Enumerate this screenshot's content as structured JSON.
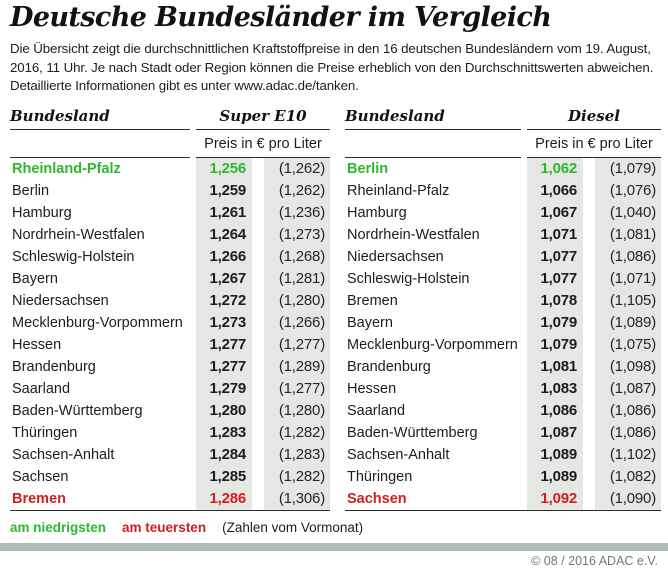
{
  "header": {
    "title": "Deutsche Bundesländer im Vergleich",
    "intro": "Die Übersicht zeigt die durchschnittlichen Kraftstoffpreise in den 16 deutschen Bundesländern vom 19. August, 2016, 11 Uhr. Je nach Stadt oder Region können die Preise erheblich von den Durchschnittswerten abweichen. Detaillierte Informationen gibt es unter www.adac.de/tanken."
  },
  "tables": [
    {
      "state_header": "Bundesland",
      "fuel_header": "Super E10",
      "unit_header": "Preis in € pro Liter",
      "rows": [
        {
          "name": "Rheinland-Pfalz",
          "price": "1,256",
          "prev": "(1,262)",
          "highlight": "lowest"
        },
        {
          "name": "Berlin",
          "price": "1,259",
          "prev": "(1,262)",
          "highlight": null
        },
        {
          "name": "Hamburg",
          "price": "1,261",
          "prev": "(1,236)",
          "highlight": null
        },
        {
          "name": "Nordrhein-Westfalen",
          "price": "1,264",
          "prev": "(1,273)",
          "highlight": null
        },
        {
          "name": "Schleswig-Holstein",
          "price": "1,266",
          "prev": "(1,268)",
          "highlight": null
        },
        {
          "name": "Bayern",
          "price": "1,267",
          "prev": "(1,281)",
          "highlight": null
        },
        {
          "name": "Niedersachsen",
          "price": "1,272",
          "prev": "(1,280)",
          "highlight": null
        },
        {
          "name": "Mecklenburg-Vorpommern",
          "price": "1,273",
          "prev": "(1,266)",
          "highlight": null
        },
        {
          "name": "Hessen",
          "price": "1,277",
          "prev": "(1,277)",
          "highlight": null
        },
        {
          "name": "Brandenburg",
          "price": "1,277",
          "prev": "(1,289)",
          "highlight": null
        },
        {
          "name": "Saarland",
          "price": "1,279",
          "prev": "(1,277)",
          "highlight": null
        },
        {
          "name": "Baden-Württemberg",
          "price": "1,280",
          "prev": "(1,280)",
          "highlight": null
        },
        {
          "name": "Thüringen",
          "price": "1,283",
          "prev": "(1,282)",
          "highlight": null
        },
        {
          "name": "Sachsen-Anhalt",
          "price": "1,284",
          "prev": "(1,283)",
          "highlight": null
        },
        {
          "name": "Sachsen",
          "price": "1,285",
          "prev": "(1,282)",
          "highlight": null
        },
        {
          "name": "Bremen",
          "price": "1,286",
          "prev": "(1,306)",
          "highlight": "highest"
        }
      ]
    },
    {
      "state_header": "Bundesland",
      "fuel_header": "Diesel",
      "unit_header": "Preis in € pro Liter",
      "rows": [
        {
          "name": "Berlin",
          "price": "1,062",
          "prev": "(1,079)",
          "highlight": "lowest"
        },
        {
          "name": "Rheinland-Pfalz",
          "price": "1,066",
          "prev": "(1,076)",
          "highlight": null
        },
        {
          "name": "Hamburg",
          "price": "1,067",
          "prev": "(1,040)",
          "highlight": null
        },
        {
          "name": "Nordrhein-Westfalen",
          "price": "1,071",
          "prev": "(1,081)",
          "highlight": null
        },
        {
          "name": "Niedersachsen",
          "price": "1,077",
          "prev": "(1,086)",
          "highlight": null
        },
        {
          "name": "Schleswig-Holstein",
          "price": "1,077",
          "prev": "(1,071)",
          "highlight": null
        },
        {
          "name": "Bremen",
          "price": "1,078",
          "prev": "(1,105)",
          "highlight": null
        },
        {
          "name": "Bayern",
          "price": "1,079",
          "prev": "(1,089)",
          "highlight": null
        },
        {
          "name": "Mecklenburg-Vorpommern",
          "price": "1,079",
          "prev": "(1,075)",
          "highlight": null
        },
        {
          "name": "Brandenburg",
          "price": "1,081",
          "prev": "(1,098)",
          "highlight": null
        },
        {
          "name": "Hessen",
          "price": "1,083",
          "prev": "(1,087)",
          "highlight": null
        },
        {
          "name": "Saarland",
          "price": "1,086",
          "prev": "(1,086)",
          "highlight": null
        },
        {
          "name": "Baden-Württemberg",
          "price": "1,087",
          "prev": "(1,086)",
          "highlight": null
        },
        {
          "name": "Sachsen-Anhalt",
          "price": "1,089",
          "prev": "(1,102)",
          "highlight": null
        },
        {
          "name": "Thüringen",
          "price": "1,089",
          "prev": "(1,082)",
          "highlight": null
        },
        {
          "name": "Sachsen",
          "price": "1,092",
          "prev": "(1,090)",
          "highlight": "highest"
        }
      ]
    }
  ],
  "legend": {
    "lowest_label": "am niedrigsten",
    "highest_label": "am teuersten",
    "note": "(Zahlen vom Vormonat)"
  },
  "footer": {
    "copyright": "© 08 / 2016 ADAC e.V."
  },
  "colors": {
    "lowest": "#2fb72f",
    "highest": "#d01f1f",
    "column_bg": "#e4e7e3",
    "bar": "#b2bcba"
  },
  "chart_data": {
    "type": "table",
    "title": "Deutsche Bundesländer im Vergleich",
    "subtitle": "Durchschnittliche Kraftstoffpreise in den 16 deutschen Bundesländern vom 19. August, 2016, 11 Uhr",
    "tables": [
      {
        "fuel": "Super E10",
        "unit": "Preis in € pro Liter",
        "columns": [
          "Bundesland",
          "Preis",
          "Vormonat"
        ],
        "rows": [
          [
            "Rheinland-Pfalz",
            1.256,
            1.262
          ],
          [
            "Berlin",
            1.259,
            1.262
          ],
          [
            "Hamburg",
            1.261,
            1.236
          ],
          [
            "Nordrhein-Westfalen",
            1.264,
            1.273
          ],
          [
            "Schleswig-Holstein",
            1.266,
            1.268
          ],
          [
            "Bayern",
            1.267,
            1.281
          ],
          [
            "Niedersachsen",
            1.272,
            1.28
          ],
          [
            "Mecklenburg-Vorpommern",
            1.273,
            1.266
          ],
          [
            "Hessen",
            1.277,
            1.277
          ],
          [
            "Brandenburg",
            1.277,
            1.289
          ],
          [
            "Saarland",
            1.279,
            1.277
          ],
          [
            "Baden-Württemberg",
            1.28,
            1.28
          ],
          [
            "Thüringen",
            1.283,
            1.282
          ],
          [
            "Sachsen-Anhalt",
            1.284,
            1.283
          ],
          [
            "Sachsen",
            1.285,
            1.282
          ],
          [
            "Bremen",
            1.286,
            1.306
          ]
        ],
        "lowest": "Rheinland-Pfalz",
        "highest": "Bremen"
      },
      {
        "fuel": "Diesel",
        "unit": "Preis in € pro Liter",
        "columns": [
          "Bundesland",
          "Preis",
          "Vormonat"
        ],
        "rows": [
          [
            "Berlin",
            1.062,
            1.079
          ],
          [
            "Rheinland-Pfalz",
            1.066,
            1.076
          ],
          [
            "Hamburg",
            1.067,
            1.04
          ],
          [
            "Nordrhein-Westfalen",
            1.071,
            1.081
          ],
          [
            "Niedersachsen",
            1.077,
            1.086
          ],
          [
            "Schleswig-Holstein",
            1.077,
            1.071
          ],
          [
            "Bremen",
            1.078,
            1.105
          ],
          [
            "Bayern",
            1.079,
            1.089
          ],
          [
            "Mecklenburg-Vorpommern",
            1.079,
            1.075
          ],
          [
            "Brandenburg",
            1.081,
            1.098
          ],
          [
            "Hessen",
            1.083,
            1.087
          ],
          [
            "Saarland",
            1.086,
            1.086
          ],
          [
            "Baden-Württemberg",
            1.087,
            1.086
          ],
          [
            "Sachsen-Anhalt",
            1.089,
            1.102
          ],
          [
            "Thüringen",
            1.089,
            1.082
          ],
          [
            "Sachsen",
            1.092,
            1.09
          ]
        ],
        "lowest": "Berlin",
        "highest": "Sachsen"
      }
    ],
    "annotations": [
      "am niedrigsten",
      "am teuersten",
      "(Zahlen vom Vormonat)"
    ],
    "legend_position": "bottom-left"
  }
}
